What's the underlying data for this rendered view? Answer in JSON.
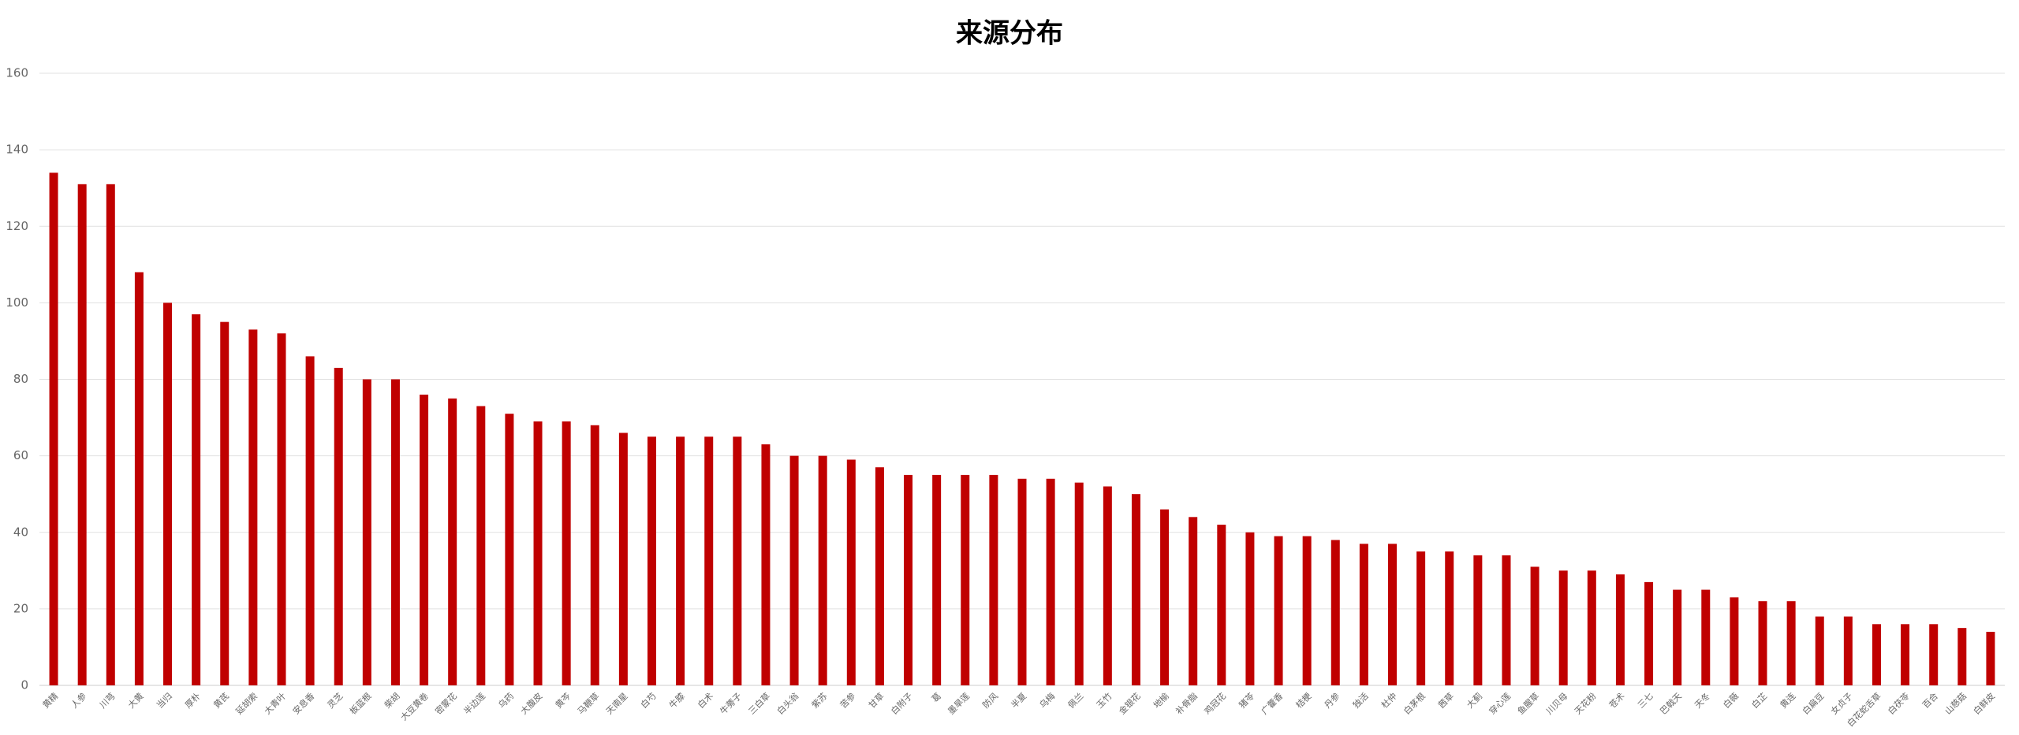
{
  "chart_data": {
    "type": "bar",
    "title": "来源分布",
    "categories": [
      "黄精",
      "人参",
      "川芎",
      "大黄",
      "当归",
      "厚朴",
      "黄芪",
      "延胡索",
      "大青叶",
      "安息香",
      "灵芝",
      "板蓝根",
      "柴胡",
      "大豆黄卷",
      "密蒙花",
      "半边莲",
      "乌药",
      "大腹皮",
      "黄芩",
      "马鞭草",
      "天南星",
      "白芍",
      "牛膝",
      "白术",
      "牛蒡子",
      "三白草",
      "白头翁",
      "紫苏",
      "苦参",
      "甘草",
      "白附子",
      "葛",
      "墨旱莲",
      "防风",
      "半夏",
      "乌梅",
      "佩兰",
      "玉竹",
      "金银花",
      "地榆",
      "补骨脂",
      "鸡冠花",
      "猪苓",
      "广藿香",
      "桔梗",
      "丹参",
      "独活",
      "杜仲",
      "白茅根",
      "茜草",
      "大蓟",
      "穿心莲",
      "鱼腥草",
      "川贝母",
      "天花粉",
      "苍术",
      "三七",
      "巴戟天",
      "天冬",
      "白薇",
      "白芷",
      "黄连",
      "白扁豆",
      "女贞子",
      "白花蛇舌草",
      "白茯苓",
      "百合",
      "山慈菇",
      "白鲜皮"
    ],
    "values": [
      134,
      131,
      131,
      108,
      100,
      97,
      95,
      93,
      92,
      86,
      83,
      80,
      80,
      76,
      75,
      73,
      71,
      69,
      69,
      68,
      66,
      65,
      65,
      65,
      65,
      63,
      60,
      60,
      59,
      57,
      55,
      55,
      55,
      55,
      54,
      54,
      53,
      52,
      50,
      46,
      44,
      42,
      40,
      39,
      39,
      38,
      37,
      37,
      35,
      35,
      34,
      34,
      31,
      30,
      30,
      29,
      27,
      25,
      25,
      23,
      22,
      22,
      18,
      18,
      16,
      16,
      16,
      15,
      14
    ],
    "color": "#c00000",
    "ylim": [
      0,
      160
    ],
    "yticks": [
      0,
      20,
      40,
      60,
      80,
      100,
      120,
      140,
      160
    ],
    "grid": true
  }
}
